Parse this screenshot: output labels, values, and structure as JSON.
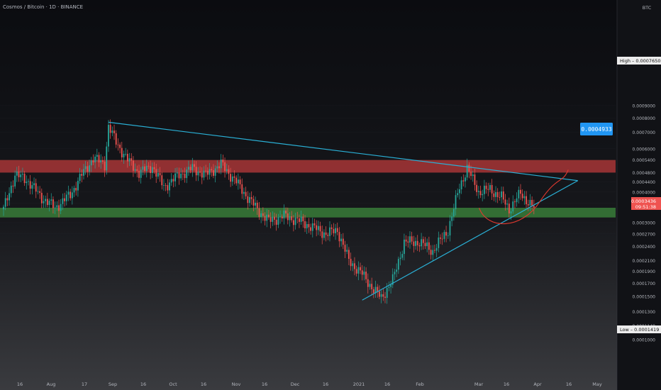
{
  "header": {
    "symbol": "Cosmos / Bitcoin",
    "interval": "1D",
    "exchange": "BINANCE"
  },
  "chart_data": {
    "type": "candlestick",
    "currency": "BTC",
    "y_scale": "log",
    "y_ticks": [
      "0.0009000",
      "0.0008000",
      "0.0007000",
      "0.0006000",
      "0.0005400",
      "0.0004800",
      "0.0004400",
      "0.0004000",
      "0.0003600",
      "0.0003000",
      "0.0002700",
      "0.0002400",
      "0.0002100",
      "0.0001900",
      "0.0001700",
      "0.0001500",
      "0.0001300",
      "0.0001140",
      "0.0001000"
    ],
    "x_ticks": [
      "16",
      "Aug",
      "17",
      "Sep",
      "16",
      "Oct",
      "16",
      "Nov",
      "16",
      "Dec",
      "16",
      "2021",
      "16",
      "Feb",
      "Mar",
      "16",
      "Apr",
      "16",
      "May"
    ],
    "badges": {
      "high": {
        "label": "High",
        "value": "0.0007650"
      },
      "low": {
        "label": "Low",
        "value": "0.0001419"
      },
      "current": {
        "value": "0.0003436",
        "countdown": "09:51:38"
      },
      "target": {
        "value": "0.0004933"
      }
    },
    "zones": [
      {
        "name": "resistance",
        "color": "#c23b3b",
        "y_top": 0.00054,
        "y_bottom": 0.00048
      },
      {
        "name": "support",
        "color": "#3e8f3e",
        "y_top": 0.000345,
        "y_bottom": 0.000315
      }
    ],
    "trendlines": [
      {
        "name": "descending",
        "color": "#2ab0d6",
        "from": [
          "2020-08-22",
          0.00077
        ],
        "to": [
          "2021-04-25",
          0.000445
        ]
      },
      {
        "name": "ascending",
        "color": "#2ab0d6",
        "from": [
          "2021-01-02",
          0.000145
        ],
        "to": [
          "2021-04-25",
          0.000445
        ]
      }
    ],
    "projection": {
      "color": "#e0392f",
      "start": [
        "2021-03-08",
        0.00034
      ],
      "end": [
        "2021-04-20",
        0.000493
      ]
    },
    "colors": {
      "up": "#26a69a",
      "down": "#ef5350",
      "grid": "#2a2d35"
    },
    "anchors": [
      [
        "2020-06-28",
        0.00034
      ],
      [
        "2020-07-04",
        0.00047
      ],
      [
        "2020-07-10",
        0.00045
      ],
      [
        "2020-07-18",
        0.00038
      ],
      [
        "2020-07-25",
        0.000345
      ],
      [
        "2020-08-02",
        0.00039
      ],
      [
        "2020-08-08",
        0.00047
      ],
      [
        "2020-08-14",
        0.00055
      ],
      [
        "2020-08-20",
        0.00052
      ],
      [
        "2020-08-22",
        0.00074
      ],
      [
        "2020-08-26",
        0.00064
      ],
      [
        "2020-09-01",
        0.00054
      ],
      [
        "2020-09-07",
        0.00048
      ],
      [
        "2020-09-14",
        0.00051
      ],
      [
        "2020-09-20",
        0.00042
      ],
      [
        "2020-09-28",
        0.00047
      ],
      [
        "2020-10-05",
        0.0005
      ],
      [
        "2020-10-12",
        0.00047
      ],
      [
        "2020-10-20",
        0.00052
      ],
      [
        "2020-10-28",
        0.00044
      ],
      [
        "2020-11-03",
        0.00038
      ],
      [
        "2020-11-08",
        0.00034
      ],
      [
        "2020-11-14",
        0.000305
      ],
      [
        "2020-11-22",
        0.00032
      ],
      [
        "2020-11-30",
        0.000305
      ],
      [
        "2020-12-06",
        0.00029
      ],
      [
        "2020-12-14",
        0.00027
      ],
      [
        "2020-12-20",
        0.00028
      ],
      [
        "2020-12-26",
        0.00021
      ],
      [
        "2021-01-02",
        0.000185
      ],
      [
        "2021-01-08",
        0.00016
      ],
      [
        "2021-01-12",
        0.000148
      ],
      [
        "2021-01-18",
        0.000175
      ],
      [
        "2021-01-24",
        0.00025
      ],
      [
        "2021-02-01",
        0.00025
      ],
      [
        "2021-02-08",
        0.00023
      ],
      [
        "2021-02-16",
        0.00028
      ],
      [
        "2021-02-22",
        0.00042
      ],
      [
        "2021-02-26",
        0.0005
      ],
      [
        "2021-03-04",
        0.0004
      ],
      [
        "2021-03-10",
        0.00041
      ],
      [
        "2021-03-16",
        0.00038
      ],
      [
        "2021-03-20",
        0.00034
      ],
      [
        "2021-03-26",
        0.000395
      ],
      [
        "2021-04-02",
        0.000343
      ]
    ]
  }
}
